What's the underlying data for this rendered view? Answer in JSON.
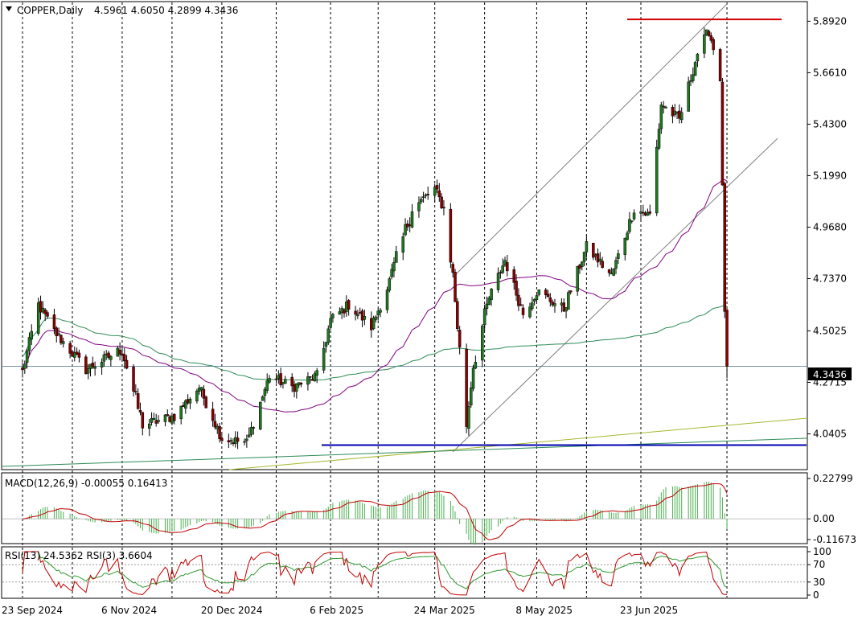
{
  "header": {
    "symbol": "COPPER,Daily",
    "ohlc": "4.5961 4.6050 4.2899 4.3436",
    "menu_icon": "triangle-down-icon"
  },
  "chart_data": [
    {
      "type": "candlestick",
      "title": "COPPER,Daily",
      "x_ticks": [
        "23 Sep 2024",
        "6 Nov 2024",
        "20 Dec 2024",
        "6 Feb 2025",
        "24 Mar 2025",
        "8 May 2025",
        "23 Jun 2025"
      ],
      "y_ticks": [
        "5.8920",
        "5.6610",
        "5.4300",
        "5.1990",
        "4.9680",
        "4.7370",
        "4.5025",
        "4.2715",
        "4.0405"
      ],
      "ylim": [
        3.88,
        5.98
      ],
      "current_price": "4.3436",
      "ohlc_last": {
        "open": 4.5961,
        "high": 4.605,
        "low": 4.2899,
        "close": 4.3436
      },
      "horizontal_levels": [
        {
          "value": 5.9,
          "color": "#d00000"
        },
        {
          "value": 3.99,
          "color": "#0000b0"
        }
      ],
      "close_path": [
        {
          "date": "2024-09-23",
          "close": 4.32
        },
        {
          "date": "2024-09-30",
          "close": 4.62
        },
        {
          "date": "2024-10-07",
          "close": 4.5
        },
        {
          "date": "2024-10-21",
          "close": 4.33
        },
        {
          "date": "2024-11-06",
          "close": 4.42
        },
        {
          "date": "2024-11-15",
          "close": 4.08
        },
        {
          "date": "2024-11-29",
          "close": 4.12
        },
        {
          "date": "2024-12-10",
          "close": 4.25
        },
        {
          "date": "2024-12-20",
          "close": 4.02
        },
        {
          "date": "2024-12-31",
          "close": 4.0
        },
        {
          "date": "2025-01-10",
          "close": 4.3
        },
        {
          "date": "2025-01-20",
          "close": 4.25
        },
        {
          "date": "2025-01-31",
          "close": 4.3
        },
        {
          "date": "2025-02-06",
          "close": 4.55
        },
        {
          "date": "2025-02-14",
          "close": 4.62
        },
        {
          "date": "2025-02-24",
          "close": 4.52
        },
        {
          "date": "2025-03-04",
          "close": 4.72
        },
        {
          "date": "2025-03-14",
          "close": 5.05
        },
        {
          "date": "2025-03-24",
          "close": 5.14
        },
        {
          "date": "2025-03-28",
          "close": 5.05
        },
        {
          "date": "2025-04-01",
          "close": 4.75
        },
        {
          "date": "2025-04-07",
          "close": 4.08
        },
        {
          "date": "2025-04-10",
          "close": 4.35
        },
        {
          "date": "2025-04-17",
          "close": 4.65
        },
        {
          "date": "2025-04-24",
          "close": 4.82
        },
        {
          "date": "2025-05-02",
          "close": 4.58
        },
        {
          "date": "2025-05-08",
          "close": 4.68
        },
        {
          "date": "2025-05-20",
          "close": 4.6
        },
        {
          "date": "2025-05-30",
          "close": 4.88
        },
        {
          "date": "2025-06-10",
          "close": 4.75
        },
        {
          "date": "2025-06-20",
          "close": 5.05
        },
        {
          "date": "2025-06-27",
          "close": 5.02
        },
        {
          "date": "2025-07-02",
          "close": 5.52
        },
        {
          "date": "2025-07-10",
          "close": 5.45
        },
        {
          "date": "2025-07-18",
          "close": 5.75
        },
        {
          "date": "2025-07-23",
          "close": 5.85
        },
        {
          "date": "2025-07-28",
          "close": 5.65
        },
        {
          "date": "2025-07-30",
          "close": 4.6
        },
        {
          "date": "2025-07-31",
          "close": 4.3436
        }
      ]
    },
    {
      "type": "macd",
      "label": "MACD(12,26,9) -0.00055 0.16413",
      "y_ticks": [
        "0.22799",
        "0.00",
        "-0.11673"
      ],
      "ylim": [
        -0.14,
        0.26
      ]
    },
    {
      "type": "rsi",
      "label": "RSI(13) 24.5362  RSI(3) 3.6604",
      "y_ticks": [
        "100",
        "70",
        "30",
        "0"
      ],
      "ylim": [
        0,
        100
      ]
    }
  ],
  "colors": {
    "bull_candle": "#1f7a1f",
    "bear_candle": "#8b0000",
    "ma_fast": "#800080",
    "ma_mid": "#2e8b57",
    "ma_slow": "#2e8b57",
    "trend_yellow": "#a8b830",
    "macd_hist": "#4caf50",
    "macd_signal": "#c00000",
    "rsi13": "#2e9a2e",
    "rsi3": "#c00000",
    "price_tag_bg": "#000000",
    "price_tag_text": "#ffffff"
  }
}
